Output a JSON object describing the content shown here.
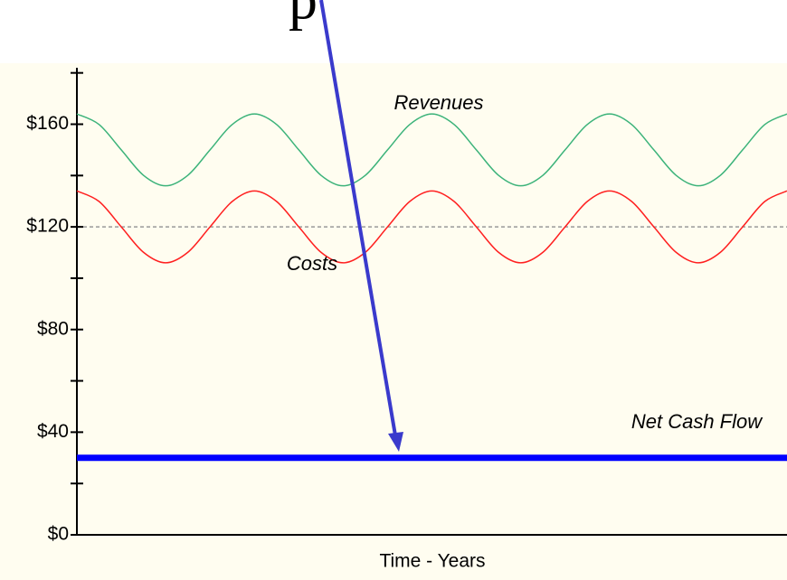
{
  "chart_data": {
    "type": "line",
    "title": "p",
    "xlabel": "Time - Years",
    "categories": [
      null,
      null,
      null,
      null,
      null,
      null,
      null,
      null,
      null,
      null,
      null,
      null,
      null,
      null,
      null,
      null,
      null,
      null,
      null,
      null,
      null,
      null,
      null,
      null,
      null,
      null,
      null,
      null,
      null,
      null,
      null,
      null,
      null
    ],
    "series": [
      {
        "name": "Revenues",
        "color": "#3cb37a",
        "width": 1.5,
        "values": [
          164,
          159.9,
          150,
          140.1,
          136,
          140.1,
          150,
          159.9,
          164,
          159.9,
          150,
          140.1,
          136,
          140.1,
          150,
          159.9,
          164,
          159.9,
          150,
          140.1,
          136,
          140.1,
          150,
          159.9,
          164,
          159.9,
          150,
          140.1,
          136,
          140.1,
          150,
          159.9,
          164
        ]
      },
      {
        "name": "Costs",
        "color": "#ff2020",
        "width": 1.5,
        "values": [
          134,
          129.9,
          120,
          110.1,
          106,
          110.1,
          120,
          129.9,
          134,
          129.9,
          120,
          110.1,
          106,
          110.1,
          120,
          129.9,
          134,
          129.9,
          120,
          110.1,
          106,
          110.1,
          120,
          129.9,
          134,
          129.9,
          120,
          110.1,
          106,
          110.1,
          120,
          129.9,
          134
        ]
      },
      {
        "name": "Net Cash Flow",
        "color": "#0000ff",
        "width": 7,
        "values": [
          30,
          30,
          30,
          30,
          30,
          30,
          30,
          30,
          30,
          30,
          30,
          30,
          30,
          30,
          30,
          30,
          30,
          30,
          30,
          30,
          30,
          30,
          30,
          30,
          30,
          30,
          30,
          30,
          30,
          30,
          30,
          30,
          30
        ]
      }
    ],
    "ylim": [
      0,
      182
    ],
    "yticks": [
      {
        "value": 0,
        "label": "$0"
      },
      {
        "value": 40,
        "label": "$40"
      },
      {
        "value": 80,
        "label": "$80"
      },
      {
        "value": 120,
        "label": "$120"
      },
      {
        "value": 160,
        "label": "$160"
      }
    ],
    "minor_yticks": [
      20,
      60,
      100,
      140,
      180
    ],
    "reference_line": 120,
    "reference_color": "#999999"
  }
}
